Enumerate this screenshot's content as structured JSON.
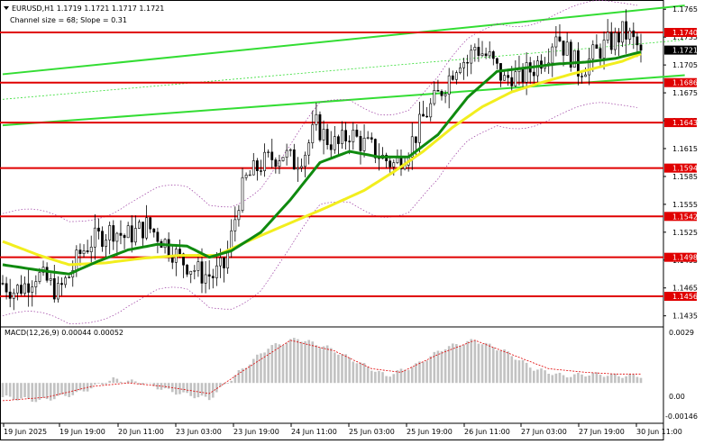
{
  "header": {
    "symbol_line": "EURUSD,H1   1.1719  1.1721  1.1717  1.1721",
    "channel_line": "Channel size = 68; Slope = 0.31"
  },
  "macd": {
    "label": "MACD(12,26,9) 0.00044 0.00052",
    "axis_top": "0.0029",
    "axis_zero": "0.00",
    "axis_bottom": "-0.00146"
  },
  "colors": {
    "candle": "#000000",
    "level": "#e00000",
    "level_label_bg": "#e00000",
    "ma_fast": "#0f8a0f",
    "ma_slow": "#f2ee1e",
    "channel": "#33dd33",
    "bands": "#9b3aa0",
    "macd_hist": "#c2c2c2",
    "macd_signal": "#e00000",
    "current_price_bg": "#000000"
  },
  "chart_data": {
    "type": "candlestick",
    "symbol": "EURUSD",
    "timeframe": "H1",
    "ylim": [
      1.1425,
      1.1772
    ],
    "price_ticks": [
      "1.1765",
      "1.1735",
      "1.1705",
      "1.1675",
      "1.1645",
      "1.1615",
      "1.1585",
      "1.1555",
      "1.1525",
      "1.1495",
      "1.1465",
      "1.1435"
    ],
    "levels": [
      1.174,
      1.1686,
      1.1643,
      1.1594,
      1.1542,
      1.1498,
      1.1456
    ],
    "level_labels": [
      "1.1740",
      "1.1686",
      "1.1643",
      "1.1594",
      "1.1542",
      "1.1498",
      "1.1456"
    ],
    "current_price": 1.1721,
    "current_price_label": "1.1721",
    "date_labels": [
      "19 Jun 2025",
      "19 Jun 19:00",
      "20 Jun 11:00",
      "23 Jun 03:00",
      "23 Jun 19:00",
      "24 Jun 11:00",
      "25 Jun 03:00",
      "25 Jun 19:00",
      "26 Jun 11:00",
      "27 Jun 03:00",
      "27 Jun 19:00",
      "30 Jun 11:00"
    ],
    "channel": {
      "upper": [
        [
          0,
          1.1695
        ],
        [
          180,
          1.1767
        ]
      ],
      "lower": [
        [
          0,
          1.164
        ],
        [
          180,
          1.1692
        ]
      ],
      "mid": [
        [
          0,
          1.1668
        ],
        [
          180,
          1.173
        ]
      ]
    },
    "path_points": [
      [
        0,
        1.147
      ],
      [
        3,
        1.1462
      ],
      [
        6,
        1.1468
      ],
      [
        9,
        1.148
      ],
      [
        12,
        1.1472
      ],
      [
        15,
        1.146
      ],
      [
        18,
        1.1478
      ],
      [
        21,
        1.1502
      ],
      [
        24,
        1.1515
      ],
      [
        27,
        1.1522
      ],
      [
        30,
        1.1528
      ],
      [
        33,
        1.152
      ],
      [
        36,
        1.1525
      ],
      [
        39,
        1.1532
      ],
      [
        42,
        1.1522
      ],
      [
        45,
        1.151
      ],
      [
        48,
        1.1496
      ],
      [
        51,
        1.1488
      ],
      [
        54,
        1.148
      ],
      [
        57,
        1.1478
      ],
      [
        60,
        1.1488
      ],
      [
        62,
        1.152
      ],
      [
        64,
        1.156
      ],
      [
        66,
        1.1582
      ],
      [
        68,
        1.159
      ],
      [
        70,
        1.1598
      ],
      [
        73,
        1.1605
      ],
      [
        76,
        1.161
      ],
      [
        79,
        1.16
      ],
      [
        82,
        1.1612
      ],
      [
        85,
        1.164
      ],
      [
        88,
        1.1625
      ],
      [
        91,
        1.1618
      ],
      [
        94,
        1.1632
      ],
      [
        97,
        1.1622
      ],
      [
        100,
        1.1615
      ],
      [
        103,
        1.1605
      ],
      [
        106,
        1.1598
      ],
      [
        109,
        1.161
      ],
      [
        112,
        1.163
      ],
      [
        114,
        1.1648
      ],
      [
        116,
        1.166
      ],
      [
        118,
        1.1672
      ],
      [
        120,
        1.1685
      ],
      [
        122,
        1.17
      ],
      [
        124,
        1.1712
      ],
      [
        126,
        1.1708
      ],
      [
        128,
        1.1725
      ],
      [
        130,
        1.1718
      ],
      [
        132,
        1.1712
      ],
      [
        134,
        1.17
      ],
      [
        136,
        1.1688
      ],
      [
        138,
        1.1695
      ],
      [
        140,
        1.169
      ],
      [
        142,
        1.1697
      ],
      [
        144,
        1.1702
      ],
      [
        146,
        1.1712
      ],
      [
        148,
        1.172
      ],
      [
        150,
        1.1742
      ],
      [
        152,
        1.1725
      ],
      [
        154,
        1.1715
      ],
      [
        156,
        1.17
      ],
      [
        158,
        1.1705
      ],
      [
        160,
        1.1715
      ],
      [
        162,
        1.1722
      ],
      [
        164,
        1.1728
      ],
      [
        166,
        1.1732
      ],
      [
        168,
        1.174
      ],
      [
        170,
        1.1735
      ],
      [
        172,
        1.1725
      ],
      [
        173,
        1.1721
      ]
    ],
    "ma_fast": [
      [
        0,
        1.149
      ],
      [
        10,
        1.1484
      ],
      [
        18,
        1.148
      ],
      [
        26,
        1.1494
      ],
      [
        34,
        1.1506
      ],
      [
        42,
        1.1512
      ],
      [
        50,
        1.151
      ],
      [
        56,
        1.1498
      ],
      [
        62,
        1.1505
      ],
      [
        70,
        1.1525
      ],
      [
        78,
        1.156
      ],
      [
        86,
        1.16
      ],
      [
        94,
        1.1612
      ],
      [
        102,
        1.1606
      ],
      [
        110,
        1.1606
      ],
      [
        118,
        1.163
      ],
      [
        126,
        1.167
      ],
      [
        134,
        1.1698
      ],
      [
        142,
        1.1702
      ],
      [
        150,
        1.1706
      ],
      [
        158,
        1.1708
      ],
      [
        166,
        1.1712
      ],
      [
        173,
        1.1719
      ]
    ],
    "ma_slow": [
      [
        0,
        1.1515
      ],
      [
        10,
        1.15
      ],
      [
        18,
        1.149
      ],
      [
        28,
        1.1492
      ],
      [
        38,
        1.1497
      ],
      [
        48,
        1.15
      ],
      [
        58,
        1.15
      ],
      [
        68,
        1.1518
      ],
      [
        78,
        1.1535
      ],
      [
        88,
        1.1552
      ],
      [
        98,
        1.157
      ],
      [
        106,
        1.159
      ],
      [
        114,
        1.1612
      ],
      [
        122,
        1.1638
      ],
      [
        130,
        1.166
      ],
      [
        138,
        1.1676
      ],
      [
        146,
        1.1686
      ],
      [
        154,
        1.1695
      ],
      [
        162,
        1.1703
      ],
      [
        168,
        1.1709
      ],
      [
        173,
        1.1717
      ]
    ],
    "macd_hist": [
      [
        0,
        -0.0008
      ],
      [
        10,
        -0.001
      ],
      [
        20,
        -0.0006
      ],
      [
        30,
        0.0002
      ],
      [
        38,
        0.0
      ],
      [
        46,
        -0.0005
      ],
      [
        56,
        -0.0009
      ],
      [
        64,
        0.0006
      ],
      [
        72,
        0.002
      ],
      [
        80,
        0.0025
      ],
      [
        88,
        0.002
      ],
      [
        96,
        0.0012
      ],
      [
        104,
        0.0004
      ],
      [
        112,
        0.001
      ],
      [
        120,
        0.002
      ],
      [
        128,
        0.0024
      ],
      [
        136,
        0.0018
      ],
      [
        144,
        0.0008
      ],
      [
        152,
        0.0004
      ],
      [
        160,
        0.0005
      ],
      [
        168,
        0.0004
      ],
      [
        173,
        0.0004
      ]
    ],
    "macd_signal": [
      [
        0,
        -0.001
      ],
      [
        12,
        -0.0008
      ],
      [
        24,
        -0.0002
      ],
      [
        34,
        0.0
      ],
      [
        44,
        -0.0002
      ],
      [
        56,
        -0.0006
      ],
      [
        66,
        0.0008
      ],
      [
        78,
        0.0024
      ],
      [
        90,
        0.0018
      ],
      [
        100,
        0.0008
      ],
      [
        108,
        0.0006
      ],
      [
        118,
        0.0016
      ],
      [
        128,
        0.0024
      ],
      [
        138,
        0.0016
      ],
      [
        148,
        0.0008
      ],
      [
        158,
        0.0006
      ],
      [
        166,
        0.0005
      ],
      [
        173,
        0.0005
      ]
    ]
  }
}
